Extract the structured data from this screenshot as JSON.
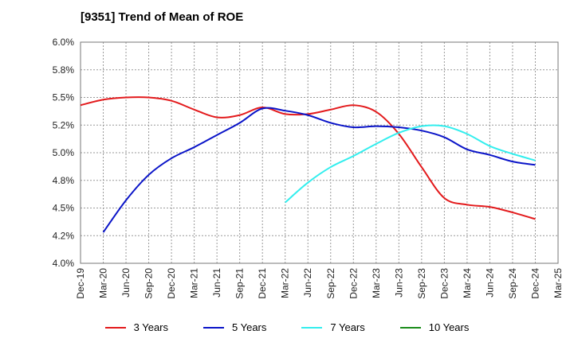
{
  "chart_data": {
    "type": "line",
    "title": "[9351]  Trend of Mean of ROE",
    "xlabel": "",
    "ylabel": "",
    "x_ticks": [
      "Dec-19",
      "Mar-20",
      "Jun-20",
      "Sep-20",
      "Dec-20",
      "Mar-21",
      "Jun-21",
      "Sep-21",
      "Dec-21",
      "Mar-22",
      "Jun-22",
      "Sep-22",
      "Dec-22",
      "Mar-23",
      "Jun-23",
      "Sep-23",
      "Dec-23",
      "Mar-24",
      "Jun-24",
      "Sep-24",
      "Dec-24",
      "Mar-25"
    ],
    "y_ticks": [
      "4.0%",
      "4.2%",
      "4.5%",
      "4.8%",
      "5.0%",
      "5.2%",
      "5.5%",
      "5.8%",
      "6.0%"
    ],
    "ylim": [
      4.0,
      6.0
    ],
    "grid": true,
    "legend_position": "bottom",
    "series": [
      {
        "name": "3 Years",
        "color": "#e31a1c",
        "x": [
          "Dec-19",
          "Mar-20",
          "Jun-20",
          "Sep-20",
          "Dec-20",
          "Mar-21",
          "Jun-21",
          "Sep-21",
          "Dec-21",
          "Mar-22",
          "Jun-22",
          "Sep-22",
          "Dec-22",
          "Mar-23",
          "Jun-23",
          "Sep-23",
          "Dec-23",
          "Mar-24",
          "Jun-24",
          "Sep-24",
          "Dec-24"
        ],
        "values": [
          5.43,
          5.48,
          5.5,
          5.5,
          5.47,
          5.39,
          5.32,
          5.34,
          5.41,
          5.35,
          5.35,
          5.39,
          5.43,
          5.37,
          5.17,
          4.87,
          4.59,
          4.53,
          4.51,
          4.46,
          4.4
        ]
      },
      {
        "name": "5 Years",
        "color": "#0a14c8",
        "x": [
          "Mar-20",
          "Jun-20",
          "Sep-20",
          "Dec-20",
          "Mar-21",
          "Jun-21",
          "Sep-21",
          "Dec-21",
          "Mar-22",
          "Jun-22",
          "Sep-22",
          "Dec-22",
          "Mar-23",
          "Jun-23",
          "Sep-23",
          "Dec-23",
          "Mar-24",
          "Jun-24",
          "Sep-24",
          "Dec-24"
        ],
        "values": [
          4.28,
          4.57,
          4.8,
          4.95,
          5.05,
          5.16,
          5.27,
          5.4,
          5.38,
          5.34,
          5.27,
          5.23,
          5.24,
          5.23,
          5.2,
          5.14,
          5.03,
          4.98,
          4.92,
          4.89
        ]
      },
      {
        "name": "7 Years",
        "color": "#33eeee",
        "x": [
          "Mar-22",
          "Jun-22",
          "Sep-22",
          "Dec-22",
          "Mar-23",
          "Jun-23",
          "Sep-23",
          "Dec-23",
          "Mar-24",
          "Jun-24",
          "Sep-24",
          "Dec-24"
        ],
        "values": [
          4.55,
          4.73,
          4.87,
          4.97,
          5.08,
          5.18,
          5.24,
          5.24,
          5.17,
          5.06,
          4.99,
          4.93
        ]
      },
      {
        "name": "10 Years",
        "color": "#1a8c1a",
        "x": [],
        "values": []
      }
    ]
  }
}
